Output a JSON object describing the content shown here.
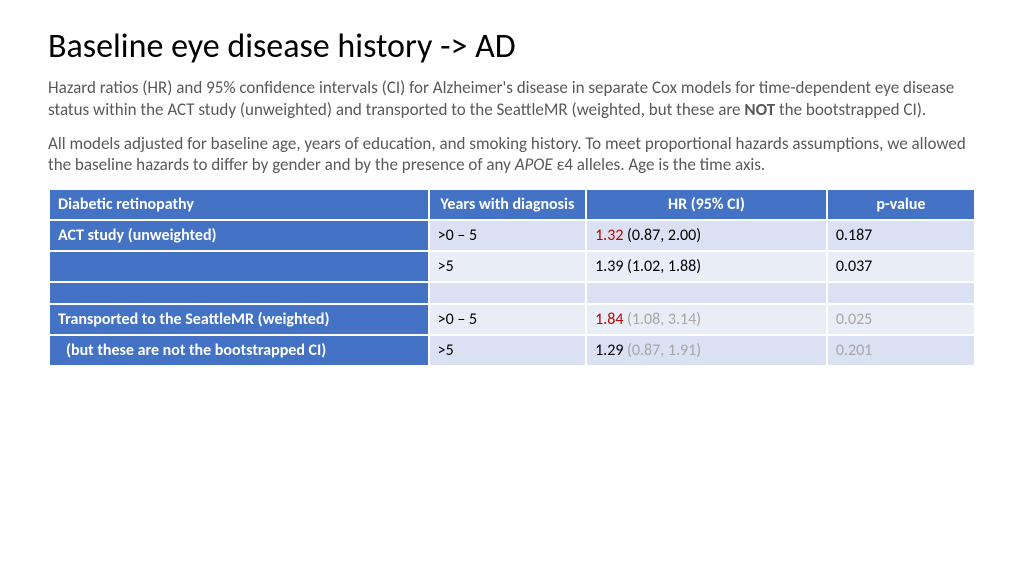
{
  "title": "Baseline eye disease history -> AD",
  "para1_a": "Hazard ratios (HR) and 95% confidence intervals (CI) for Alzheimer's disease in separate Cox models for time-dependent eye disease status within the ACT study (unweighted) and transported to the SeattleMR (weighted, but these are ",
  "para1_bold": "NOT",
  "para1_b": " the bootstrapped CI).",
  "para2_a": "All models adjusted for baseline age, years of education, and smoking history. To meet proportional hazards assumptions, we allowed the baseline hazards to differ by gender and by the presence of any ",
  "para2_ital": "APOE",
  "para2_b": " ε4 alleles. Age is the time axis.",
  "table": {
    "headers": {
      "c1": "Diabetic retinopathy",
      "c2": "Years with diagnosis",
      "c3": "HR (95% CI)",
      "c4": "p-value"
    },
    "group1_label": "ACT study (unweighted)",
    "group2_label": "Transported to the SeattleMR (weighted)",
    "group2_note": "(but these are not the bootstrapped CI)",
    "r1": {
      "years": ">0 – 5",
      "hr_red": "1.32",
      "hr_rest": " (0.87, 2.00)",
      "p": "0.187"
    },
    "r2": {
      "years": ">5",
      "hr_red": "",
      "hr_plain": "1.39 (1.02, 1.88)",
      "p": "0.037"
    },
    "r3": {
      "years": ">0 – 5",
      "hr_red": "1.84",
      "hr_grey": " (1.08, 3.14)",
      "p_grey": "0.025"
    },
    "r4": {
      "years": ">5",
      "hr_plain": "1.29",
      "hr_grey": " (0.87, 1.91)",
      "p_grey": "0.201"
    }
  },
  "colors": {
    "header_bg": "#4472c4",
    "band1": "#d9e1f2",
    "band0": "#e9edf6",
    "red": "#c00000",
    "grey": "#a6a6a6",
    "text_muted": "#595959"
  }
}
